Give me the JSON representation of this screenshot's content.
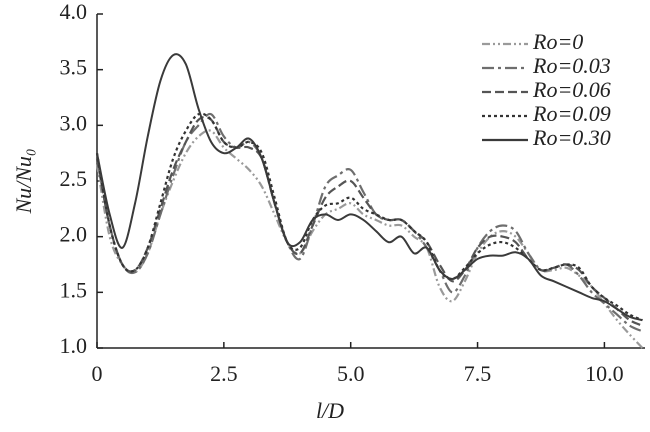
{
  "chart_data": {
    "type": "line",
    "xlabel": "l/D",
    "ylabel": "Nu/Nu₀",
    "x": [
      0,
      0.25,
      0.5,
      0.75,
      1,
      1.25,
      1.5,
      1.75,
      2,
      2.25,
      2.5,
      2.75,
      3,
      3.25,
      3.5,
      3.75,
      4,
      4.25,
      4.5,
      4.75,
      5,
      5.25,
      5.5,
      5.75,
      6,
      6.25,
      6.5,
      6.75,
      7,
      7.25,
      7.5,
      7.75,
      8,
      8.25,
      8.5,
      8.75,
      9,
      9.25,
      9.5,
      9.75,
      10,
      10.25,
      10.5,
      10.75
    ],
    "series": [
      {
        "name": "Ro=0",
        "color": "#9a9a9a",
        "dash": "dashdotdot",
        "values": [
          2.65,
          2.0,
          1.75,
          1.68,
          1.85,
          2.2,
          2.5,
          2.75,
          2.9,
          2.95,
          2.8,
          2.7,
          2.6,
          2.45,
          2.2,
          1.95,
          1.85,
          2.05,
          2.2,
          2.25,
          2.3,
          2.2,
          2.15,
          2.1,
          2.1,
          2.0,
          1.9,
          1.55,
          1.42,
          1.6,
          1.85,
          2.0,
          2.05,
          2.0,
          1.85,
          1.7,
          1.7,
          1.72,
          1.65,
          1.55,
          1.4,
          1.25,
          1.12,
          1.0
        ]
      },
      {
        "name": "Ro=0.03",
        "color": "#6e6e6e",
        "dash": "dashdot",
        "values": [
          2.7,
          2.1,
          1.75,
          1.68,
          1.85,
          2.2,
          2.55,
          2.85,
          3.0,
          3.1,
          2.9,
          2.8,
          2.85,
          2.7,
          2.3,
          1.95,
          1.8,
          2.1,
          2.45,
          2.55,
          2.6,
          2.4,
          2.2,
          2.15,
          2.15,
          2.05,
          1.9,
          1.7,
          1.5,
          1.65,
          1.9,
          2.05,
          2.1,
          2.05,
          1.85,
          1.7,
          1.72,
          1.75,
          1.65,
          1.5,
          1.4,
          1.3,
          1.2,
          1.15
        ]
      },
      {
        "name": "Ro=0.06",
        "color": "#555555",
        "dash": "dashed",
        "values": [
          2.7,
          2.1,
          1.75,
          1.7,
          1.9,
          2.25,
          2.6,
          2.85,
          3.05,
          3.05,
          2.85,
          2.8,
          2.8,
          2.7,
          2.3,
          1.95,
          1.85,
          2.1,
          2.35,
          2.45,
          2.5,
          2.35,
          2.2,
          2.15,
          2.15,
          2.05,
          1.95,
          1.75,
          1.6,
          1.7,
          1.9,
          2.0,
          2.0,
          1.95,
          1.8,
          1.7,
          1.72,
          1.75,
          1.7,
          1.55,
          1.45,
          1.35,
          1.25,
          1.2
        ]
      },
      {
        "name": "Ro=0.09",
        "color": "#333333",
        "dash": "dotted",
        "values": [
          2.75,
          2.1,
          1.75,
          1.7,
          1.9,
          2.3,
          2.7,
          2.95,
          3.1,
          3.05,
          2.85,
          2.8,
          2.85,
          2.75,
          2.35,
          1.95,
          1.9,
          2.15,
          2.28,
          2.3,
          2.35,
          2.25,
          2.2,
          2.15,
          2.15,
          2.05,
          1.95,
          1.7,
          1.62,
          1.72,
          1.85,
          1.93,
          1.95,
          1.9,
          1.8,
          1.7,
          1.72,
          1.75,
          1.72,
          1.55,
          1.45,
          1.38,
          1.3,
          1.25
        ]
      },
      {
        "name": "Ro=0.30",
        "color": "#3a3a3a",
        "dash": "solid",
        "values": [
          2.75,
          2.2,
          1.9,
          2.3,
          2.9,
          3.4,
          3.63,
          3.55,
          3.15,
          2.85,
          2.75,
          2.8,
          2.88,
          2.7,
          2.3,
          1.95,
          1.95,
          2.15,
          2.2,
          2.15,
          2.2,
          2.15,
          2.05,
          1.95,
          2.0,
          1.85,
          1.9,
          1.7,
          1.62,
          1.7,
          1.8,
          1.83,
          1.83,
          1.86,
          1.8,
          1.65,
          1.6,
          1.55,
          1.5,
          1.45,
          1.42,
          1.35,
          1.28,
          1.25
        ]
      }
    ],
    "xlim": [
      0,
      10.8
    ],
    "xticks": [
      0,
      2.5,
      {
        "value": 5,
        "label": "5.0"
      },
      7.5,
      {
        "value": 10,
        "label": "10.0"
      }
    ],
    "ylim": [
      1,
      4
    ],
    "yticks": [
      {
        "value": 1,
        "label": "1.0"
      },
      1.5,
      {
        "value": 2,
        "label": "2.0"
      },
      2.5,
      {
        "value": 3,
        "label": "3.0"
      },
      3.5,
      {
        "value": 4,
        "label": "4.0"
      }
    ],
    "grid": false,
    "legend": "upper right"
  }
}
